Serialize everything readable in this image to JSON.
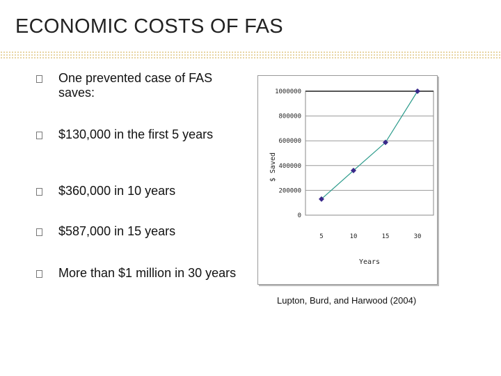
{
  "slide": {
    "title": "ECONOMIC COSTS OF FAS",
    "bullets": [
      "One prevented case of FAS saves:",
      "$130,000 in the first 5 years",
      "$360,000 in 10 years",
      "$587,000 in 15 years",
      "More than $1 million in 30 years"
    ],
    "citation": "Lupton, Burd, and Harwood (2004)"
  },
  "chart_data": {
    "type": "line",
    "categories": [
      "5",
      "10",
      "15",
      "30"
    ],
    "series": [
      {
        "values": [
          130000,
          360000,
          587000,
          1000000
        ]
      }
    ],
    "y_ticks": [
      "0",
      "200000",
      "400000",
      "600000",
      "800000",
      "1000000"
    ],
    "ylim": [
      0,
      1000000
    ],
    "xlabel": "Years",
    "ylabel": "$ Saved",
    "line_color": "#2a9a8a",
    "marker_color": "#3a2a8a",
    "grid": true
  }
}
